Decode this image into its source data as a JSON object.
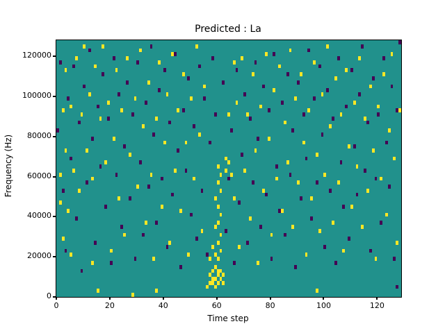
{
  "chart_data": {
    "type": "heatmap",
    "title": "Predicted : La",
    "xlabel": "Time step",
    "ylabel": "Frequency (Hz)",
    "x_range": [
      0,
      129
    ],
    "y_range": [
      0,
      128000
    ],
    "x_ticks": [
      0,
      20,
      40,
      60,
      80,
      100,
      120
    ],
    "y_ticks": [
      0,
      20000,
      40000,
      60000,
      80000,
      100000,
      120000
    ],
    "grid": false,
    "legend": "none",
    "colors": {
      "background": "#21918c",
      "high": "#fde725",
      "low": "#440154"
    },
    "cell_grid": {
      "time_steps": 129,
      "freq_bins": 64,
      "bin_hz": 2000
    },
    "cells": {
      "yellow": [
        [
          56,
          2
        ],
        [
          57,
          3
        ],
        [
          57,
          5
        ],
        [
          58,
          3
        ],
        [
          58,
          4
        ],
        [
          58,
          6
        ],
        [
          59,
          2
        ],
        [
          59,
          4
        ],
        [
          59,
          7
        ],
        [
          60,
          3
        ],
        [
          60,
          5
        ],
        [
          60,
          6
        ],
        [
          61,
          4
        ],
        [
          61,
          6
        ],
        [
          62,
          3
        ],
        [
          62,
          5
        ],
        [
          57,
          9
        ],
        [
          59,
          10
        ],
        [
          60,
          9
        ],
        [
          61,
          11
        ],
        [
          58,
          12
        ],
        [
          60,
          13
        ],
        [
          61,
          15
        ],
        [
          59,
          17
        ],
        [
          60,
          18
        ],
        [
          61,
          20
        ],
        [
          60,
          22
        ],
        [
          59,
          24
        ],
        [
          61,
          26
        ],
        [
          60,
          28
        ],
        [
          61,
          30
        ],
        [
          60,
          32
        ],
        [
          63,
          31
        ],
        [
          64,
          33
        ],
        [
          65,
          30
        ],
        [
          63,
          34
        ],
        [
          1,
          30
        ],
        [
          1,
          23
        ],
        [
          2,
          14
        ],
        [
          2,
          46
        ],
        [
          3,
          56
        ],
        [
          4,
          21
        ],
        [
          5,
          47
        ],
        [
          5,
          10
        ],
        [
          6,
          31
        ],
        [
          7,
          59
        ],
        [
          8,
          26
        ],
        [
          9,
          45
        ],
        [
          10,
          62
        ],
        [
          11,
          36
        ],
        [
          12,
          50
        ],
        [
          13,
          8
        ],
        [
          13,
          29
        ],
        [
          14,
          57
        ],
        [
          15,
          1
        ],
        [
          16,
          44
        ],
        [
          17,
          62
        ],
        [
          18,
          33
        ],
        [
          19,
          48
        ],
        [
          20,
          11
        ],
        [
          21,
          39
        ],
        [
          23,
          24
        ],
        [
          24,
          46
        ],
        [
          25,
          15
        ],
        [
          26,
          59
        ],
        [
          27,
          35
        ],
        [
          28,
          0
        ],
        [
          29,
          49
        ],
        [
          30,
          27
        ],
        [
          31,
          61
        ],
        [
          33,
          18
        ],
        [
          34,
          53
        ],
        [
          35,
          30
        ],
        [
          36,
          9
        ],
        [
          37,
          1
        ],
        [
          37,
          44
        ],
        [
          38,
          58
        ],
        [
          39,
          22
        ],
        [
          41,
          50
        ],
        [
          42,
          13
        ],
        [
          43,
          60
        ],
        [
          44,
          31
        ],
        [
          45,
          46
        ],
        [
          47,
          55
        ],
        [
          48,
          38
        ],
        [
          49,
          10
        ],
        [
          50,
          49
        ],
        [
          52,
          62
        ],
        [
          53,
          40
        ],
        [
          54,
          16
        ],
        [
          55,
          52
        ],
        [
          66,
          24
        ],
        [
          67,
          48
        ],
        [
          68,
          12
        ],
        [
          69,
          59
        ],
        [
          70,
          31
        ],
        [
          71,
          45
        ],
        [
          72,
          19
        ],
        [
          74,
          36
        ],
        [
          75,
          8
        ],
        [
          76,
          47
        ],
        [
          77,
          26
        ],
        [
          78,
          60
        ],
        [
          79,
          39
        ],
        [
          81,
          51
        ],
        [
          82,
          29
        ],
        [
          83,
          57
        ],
        [
          84,
          21
        ],
        [
          85,
          43
        ],
        [
          86,
          33
        ],
        [
          87,
          61
        ],
        [
          88,
          17
        ],
        [
          89,
          49
        ],
        [
          91,
          55
        ],
        [
          92,
          38
        ],
        [
          93,
          10
        ],
        [
          94,
          46
        ],
        [
          95,
          24
        ],
        [
          96,
          58
        ],
        [
          97,
          1
        ],
        [
          97,
          35
        ],
        [
          99,
          50
        ],
        [
          100,
          30
        ],
        [
          101,
          62
        ],
        [
          102,
          42
        ],
        [
          103,
          18
        ],
        [
          105,
          28
        ],
        [
          106,
          45
        ],
        [
          107,
          11
        ],
        [
          108,
          56
        ],
        [
          109,
          37
        ],
        [
          110,
          22
        ],
        [
          111,
          48
        ],
        [
          112,
          32
        ],
        [
          113,
          59
        ],
        [
          115,
          44
        ],
        [
          116,
          26
        ],
        [
          117,
          52
        ],
        [
          118,
          36
        ],
        [
          119,
          9
        ],
        [
          120,
          47
        ],
        [
          121,
          29
        ],
        [
          122,
          55
        ],
        [
          123,
          20
        ],
        [
          124,
          41
        ],
        [
          125,
          60
        ],
        [
          126,
          34
        ],
        [
          127,
          13
        ],
        [
          128,
          46
        ],
        [
          3,
          36
        ],
        [
          22,
          56
        ],
        [
          46,
          21
        ],
        [
          73,
          55
        ],
        [
          90,
          28
        ],
        [
          104,
          54
        ],
        [
          114,
          17
        ],
        [
          32,
          42
        ],
        [
          51,
          29
        ],
        [
          98,
          16
        ],
        [
          40,
          38
        ],
        [
          80,
          15
        ],
        [
          64,
          45
        ],
        [
          66,
          58
        ]
      ],
      "purple": [
        [
          0,
          41
        ],
        [
          1,
          58
        ],
        [
          2,
          26
        ],
        [
          3,
          11
        ],
        [
          4,
          49
        ],
        [
          5,
          34
        ],
        [
          6,
          57
        ],
        [
          7,
          19
        ],
        [
          8,
          43
        ],
        [
          10,
          52
        ],
        [
          11,
          28
        ],
        [
          12,
          61
        ],
        [
          13,
          39
        ],
        [
          14,
          13
        ],
        [
          15,
          47
        ],
        [
          16,
          32
        ],
        [
          17,
          55
        ],
        [
          18,
          22
        ],
        [
          19,
          44
        ],
        [
          21,
          59
        ],
        [
          22,
          30
        ],
        [
          23,
          50
        ],
        [
          24,
          17
        ],
        [
          25,
          37
        ],
        [
          26,
          53
        ],
        [
          27,
          24
        ],
        [
          28,
          45
        ],
        [
          30,
          58
        ],
        [
          31,
          33
        ],
        [
          32,
          15
        ],
        [
          33,
          48
        ],
        [
          34,
          27
        ],
        [
          35,
          62
        ],
        [
          36,
          40
        ],
        [
          37,
          18
        ],
        [
          38,
          51
        ],
        [
          39,
          29
        ],
        [
          41,
          12
        ],
        [
          42,
          43
        ],
        [
          43,
          25
        ],
        [
          44,
          60
        ],
        [
          45,
          36
        ],
        [
          46,
          7
        ],
        [
          47,
          46
        ],
        [
          48,
          31
        ],
        [
          49,
          54
        ],
        [
          50,
          20
        ],
        [
          51,
          42
        ],
        [
          53,
          57
        ],
        [
          54,
          26
        ],
        [
          55,
          49
        ],
        [
          56,
          10
        ],
        [
          57,
          38
        ],
        [
          58,
          59
        ],
        [
          59,
          45
        ],
        [
          62,
          53
        ],
        [
          64,
          29
        ],
        [
          65,
          41
        ],
        [
          66,
          8
        ],
        [
          67,
          56
        ],
        [
          68,
          23
        ],
        [
          69,
          35
        ],
        [
          70,
          50
        ],
        [
          72,
          44
        ],
        [
          73,
          28
        ],
        [
          74,
          58
        ],
        [
          75,
          39
        ],
        [
          76,
          17
        ],
        [
          77,
          52
        ],
        [
          78,
          25
        ],
        [
          79,
          46
        ],
        [
          80,
          9
        ],
        [
          81,
          60
        ],
        [
          82,
          32
        ],
        [
          83,
          21
        ],
        [
          85,
          15
        ],
        [
          86,
          55
        ],
        [
          87,
          30
        ],
        [
          88,
          41
        ],
        [
          89,
          7
        ],
        [
          90,
          53
        ],
        [
          91,
          24
        ],
        [
          92,
          45
        ],
        [
          93,
          34
        ],
        [
          94,
          61
        ],
        [
          96,
          49
        ],
        [
          97,
          28
        ],
        [
          98,
          57
        ],
        [
          99,
          40
        ],
        [
          100,
          12
        ],
        [
          101,
          51
        ],
        [
          102,
          26
        ],
        [
          103,
          44
        ],
        [
          104,
          8
        ],
        [
          105,
          59
        ],
        [
          107,
          22
        ],
        [
          108,
          47
        ],
        [
          109,
          14
        ],
        [
          110,
          56
        ],
        [
          111,
          37
        ],
        [
          112,
          25
        ],
        [
          113,
          50
        ],
        [
          114,
          62
        ],
        [
          115,
          31
        ],
        [
          116,
          43
        ],
        [
          118,
          54
        ],
        [
          119,
          29
        ],
        [
          120,
          45
        ],
        [
          121,
          18
        ],
        [
          122,
          59
        ],
        [
          123,
          38
        ],
        [
          124,
          27
        ],
        [
          125,
          52
        ],
        [
          127,
          46
        ],
        [
          127,
          2
        ],
        [
          128,
          63
        ],
        [
          9,
          6
        ],
        [
          20,
          8
        ],
        [
          29,
          9
        ],
        [
          40,
          56
        ],
        [
          52,
          14
        ],
        [
          63,
          16
        ],
        [
          71,
          13
        ],
        [
          84,
          48
        ],
        [
          95,
          19
        ],
        [
          106,
          33
        ],
        [
          117,
          11
        ],
        [
          126,
          9
        ]
      ]
    }
  }
}
